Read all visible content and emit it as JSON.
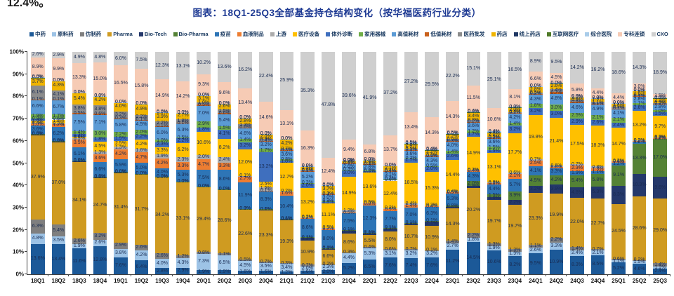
{
  "corner_fragment": "12.4%。",
  "chart_data": {
    "type": "bar",
    "variant": "stacked-100",
    "title": "图表：18Q1-25Q3全部基金持仓结构变化（按华福医药行业分类）",
    "xlabel": "",
    "ylabel": "",
    "ylim": [
      0,
      100
    ],
    "grid": false,
    "legend_position": "top",
    "y_ticks": [
      "0%",
      "10%",
      "20%",
      "30%",
      "40%",
      "50%",
      "60%",
      "70%",
      "80%",
      "90%",
      "100%"
    ],
    "segments": [
      {
        "name": "中药",
        "color": "#1c5998"
      },
      {
        "name": "原料药",
        "color": "#9dc3e6"
      },
      {
        "name": "仿制药",
        "color": "#7f7f7f"
      },
      {
        "name": "Pharma",
        "color": "#cf9b21"
      },
      {
        "name": "Bio-Tech",
        "color": "#24386b"
      },
      {
        "name": "Bio-Pharma",
        "color": "#548235"
      },
      {
        "name": "疫苗",
        "color": "#2e75b6"
      },
      {
        "name": "血液制品",
        "color": "#ed7d31"
      },
      {
        "name": "上游",
        "color": "#ababab"
      },
      {
        "name": "医疗设备",
        "color": "#ffc000"
      },
      {
        "name": "体外诊断",
        "color": "#3f6fbe"
      },
      {
        "name": "家用器械",
        "color": "#70ad47"
      },
      {
        "name": "高值耗材",
        "color": "#5b9bd5"
      },
      {
        "name": "低值耗材",
        "color": "#c9611c"
      },
      {
        "name": "医药批发",
        "color": "#8c8c8c"
      },
      {
        "name": "药店",
        "color": "#f0b400"
      },
      {
        "name": "线上药店",
        "color": "#203864"
      },
      {
        "name": "互联网医疗",
        "color": "#4f7a28"
      },
      {
        "name": "综合医院",
        "color": "#a9cce9"
      },
      {
        "name": "专科连锁",
        "color": "#f6cbb5"
      },
      {
        "name": "CXO",
        "color": "#cfcfcf"
      }
    ],
    "categories": [
      "18Q1",
      "18Q2",
      "18Q3",
      "18Q4",
      "19Q1",
      "19Q2",
      "19Q3",
      "19Q4",
      "20Q1",
      "20Q2",
      "20Q3",
      "20Q4",
      "21Q1",
      "21Q2",
      "21Q3",
      "21Q4",
      "22Q1",
      "22Q2",
      "22Q3",
      "22Q4",
      "23Q1",
      "23Q2",
      "23Q3",
      "23Q4",
      "24Q1",
      "24Q2",
      "24Q3",
      "24Q4",
      "25Q1",
      "25Q2",
      "25Q3"
    ],
    "values": [
      [
        13.6,
        4.8,
        6.3,
        37.9,
        0.6,
        0.04,
        3.6,
        1.0,
        0.4,
        1.0,
        0.9,
        1.9,
        6.6,
        0.1,
        6.1,
        3.7,
        0,
        0.04,
        0.04,
        8.9,
        2.6
      ],
      [
        13.4,
        3.5,
        5.4,
        37.0,
        0.6,
        0.04,
        6.2,
        1.2,
        0.3,
        1.8,
        0.6,
        1.7,
        6.7,
        0.1,
        4.1,
        4.3,
        0,
        0.04,
        0.04,
        9.9,
        2.9
      ],
      [
        11.6,
        1.9,
        2.6,
        34.1,
        0.6,
        0.04,
        6.1,
        3.5,
        0.5,
        0.6,
        1.3,
        1.4,
        7.5,
        0.5,
        3.8,
        5.4,
        0,
        0.04,
        0.04,
        13.3,
        4.9
      ],
      [
        12.8,
        2.6,
        3.2,
        24.7,
        0.6,
        0.04,
        6.6,
        3.6,
        1.3,
        4.5,
        1.8,
        3.0,
        7.1,
        0.6,
        3.8,
        4.2,
        0,
        0.04,
        0.04,
        15.0,
        4.8
      ],
      [
        7.6,
        3.8,
        2.9,
        31.4,
        0.04,
        0.04,
        5.9,
        4.2,
        1.3,
        2.5,
        1.9,
        2.2,
        5.8,
        0.3,
        3.2,
        4.0,
        0,
        0.04,
        0.04,
        16.5,
        6.0
      ],
      [
        6.4,
        4.2,
        2.6,
        31.7,
        0.04,
        0.04,
        5.0,
        4.7,
        1.6,
        4.2,
        2.2,
        2.0,
        4.5,
        0.1,
        2.2,
        4.9,
        0,
        0.04,
        0.04,
        15.8,
        7.5
      ],
      [
        2.8,
        4.0,
        2.6,
        34.2,
        0.04,
        0.04,
        4.0,
        4.2,
        1.9,
        3.3,
        2.3,
        1.0,
        6.0,
        0.1,
        2.2,
        3.9,
        0,
        0.04,
        0.04,
        14.9,
        12.3
      ],
      [
        2.9,
        4.3,
        1.2,
        33.1,
        0.04,
        0.04,
        5.3,
        3.3,
        2.3,
        6.2,
        2.2,
        0.5,
        6.3,
        0.1,
        1.8,
        2.7,
        0,
        0.04,
        0.04,
        14.2,
        13.1
      ],
      [
        1.9,
        7.3,
        0.8,
        29.4,
        0.04,
        0.04,
        7.5,
        4.7,
        2.0,
        10.6,
        1.8,
        2.9,
        7.0,
        0.5,
        1.0,
        3.1,
        0,
        0.04,
        0.04,
        9.3,
        10.2
      ],
      [
        1.9,
        6.5,
        1.1,
        28.6,
        0.04,
        0.04,
        8.6,
        3.3,
        2.4,
        8.2,
        4.1,
        1.5,
        5.4,
        0.6,
        1.5,
        2.6,
        0,
        0.04,
        0.04,
        9.6,
        13.6
      ],
      [
        1.6,
        4.5,
        0.5,
        22.6,
        0.04,
        0.1,
        11.9,
        2.7,
        0.1,
        12.0,
        3.2,
        1.4,
        4.6,
        0.6,
        1.3,
        2.8,
        0,
        0.04,
        0.04,
        13.4,
        16.2
      ],
      [
        1.6,
        3.5,
        0.7,
        23.3,
        0.04,
        0.1,
        8.3,
        0.1,
        1.5,
        2.5,
        13.2,
        1.7,
        3.2,
        0.4,
        0.9,
        2.0,
        0,
        0.04,
        0.04,
        14.6,
        22.4
      ],
      [
        1.2,
        3.4,
        0.3,
        19.3,
        0.6,
        0.1,
        10.4,
        1.6,
        0.2,
        12.7,
        1.0,
        0.8,
        3.6,
        0.3,
        0.7,
        4.2,
        0,
        0.04,
        0.04,
        13.1,
        25.9
      ],
      [
        1.6,
        2.0,
        0.7,
        10.9,
        1.3,
        0.1,
        8.6,
        0.2,
        0.2,
        13.2,
        2.0,
        0.3,
        5.2,
        0.1,
        0.6,
        1.5,
        0,
        0.04,
        0.04,
        16.3,
        35.3
      ],
      [
        2.0,
        2.3,
        0.2,
        6.6,
        0.6,
        0.1,
        8.0,
        0.7,
        0.5,
        11.1,
        0.5,
        0.3,
        3.0,
        0.1,
        0.3,
        3.7,
        0,
        0.04,
        0.04,
        12.4,
        47.8
      ],
      [
        5.2,
        4.4,
        0.3,
        8.6,
        1.3,
        0.1,
        7.5,
        0.5,
        1.2,
        14.9,
        3.0,
        0.3,
        2.6,
        0.1,
        0.4,
        0.9,
        0,
        0.04,
        0.04,
        9.4,
        39.6
      ],
      [
        6.5,
        5.3,
        0.4,
        5.5,
        1.0,
        0.1,
        12.3,
        0.8,
        0.5,
        13.6,
        0.5,
        0.2,
        2.8,
        0.1,
        0.3,
        1.6,
        0,
        0.04,
        0.04,
        6.8,
        41.9
      ],
      [
        7.6,
        3.1,
        0.6,
        8.0,
        1.3,
        0.1,
        7.7,
        0.9,
        0.2,
        12.4,
        0.6,
        0.3,
        3.1,
        0.1,
        0.4,
        2.1,
        0,
        0.04,
        0.04,
        13.7,
        37.2
      ],
      [
        7.4,
        3.2,
        0.7,
        10.7,
        0.8,
        0.1,
        7.0,
        1.4,
        0.4,
        18.5,
        1.7,
        0.2,
        3.6,
        0.1,
        0.5,
        2.4,
        0,
        0.04,
        0.5,
        13.4,
        27.2
      ],
      [
        7.6,
        3.2,
        0.1,
        10.9,
        2.1,
        0.1,
        6.3,
        0.4,
        0.3,
        15.3,
        2.0,
        0.5,
        4.3,
        0.1,
        0.6,
        2.2,
        0,
        0.04,
        0.4,
        14.3,
        29.5
      ],
      [
        11.2,
        2.7,
        1.4,
        14.3,
        0.6,
        0.8,
        5.3,
        0.5,
        0.4,
        14.4,
        2.6,
        1.4,
        4.0,
        0.3,
        0.9,
        2.2,
        0,
        0.04,
        0.5,
        14.3,
        22.2
      ],
      [
        14.5,
        1.8,
        2.2,
        20.2,
        0.9,
        2.0,
        4.3,
        0.4,
        0.3,
        14.9,
        1.7,
        1.2,
        3.6,
        0.2,
        0.8,
        3.4,
        0,
        0.04,
        0.4,
        11.5,
        15.1
      ],
      [
        10.6,
        1.9,
        1.3,
        19.7,
        1.0,
        1.5,
        4.4,
        0.5,
        0.3,
        13.1,
        1.5,
        1.5,
        3.6,
        0.2,
        0.5,
        2.0,
        0,
        0.04,
        0.4,
        10.6,
        25.1
      ],
      [
        8.2,
        1.9,
        1.3,
        19.7,
        2.2,
        3.9,
        5.7,
        2.1,
        0.6,
        17.7,
        3.2,
        1.4,
        4.2,
        0.2,
        0.4,
        2.0,
        0,
        0.04,
        0.3,
        8.1,
        16.5
      ],
      [
        9.5,
        2.6,
        1.1,
        23.3,
        3.2,
        4.5,
        4.1,
        2.5,
        0.7,
        19.8,
        3.2,
        1.8,
        4.3,
        0.2,
        0.5,
        2.8,
        0,
        0.04,
        0.04,
        6.6,
        8.9
      ],
      [
        10.9,
        3.3,
        2.2,
        19.9,
        3.9,
        4.2,
        3.3,
        0.6,
        0.6,
        21.4,
        3.0,
        3.0,
        4.8,
        0.7,
        1.4,
        2.6,
        0,
        0.04,
        0.04,
        4.5,
        9.5
      ],
      [
        8.3,
        2.4,
        1.4,
        22.0,
        4.8,
        5.4,
        1.9,
        2.3,
        0.7,
        17.5,
        2.9,
        2.5,
        4.6,
        0.6,
        0.9,
        1.2,
        0,
        0.04,
        0.04,
        5.8,
        14.2
      ],
      [
        8.5,
        2.1,
        0.7,
        22.7,
        5.3,
        5.8,
        1.1,
        1.3,
        0.8,
        18.3,
        2.6,
        2.1,
        4.9,
        0.1,
        1.1,
        1.6,
        0,
        0.04,
        0.04,
        4.4,
        16.2
      ],
      [
        5.2,
        1.1,
        0.6,
        24.5,
        8.3,
        9.1,
        1.2,
        0.6,
        0.3,
        14.7,
        2.4,
        2.1,
        4.1,
        0.1,
        0.9,
        1.4,
        0,
        0.04,
        0.04,
        4.4,
        18.6
      ],
      [
        4.6,
        1.5,
        0.2,
        28.6,
        10.3,
        13.3,
        1.2,
        0.2,
        0.2,
        13.2,
        2.6,
        1.1,
        2.8,
        0.1,
        0.8,
        1.8,
        0,
        0.04,
        0.04,
        3.0,
        14.3
      ],
      [
        2.4,
        1.1,
        1.4,
        29.0,
        9.6,
        17.0,
        0.2,
        0.2,
        0.2,
        9.7,
        1.5,
        1.0,
        2.8,
        0.1,
        0.3,
        2.1,
        0,
        0.04,
        0.3,
        1.5,
        18.9
      ]
    ]
  }
}
